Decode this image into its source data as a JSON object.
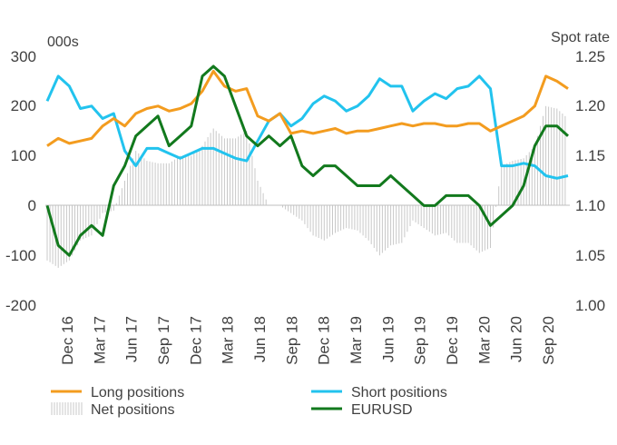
{
  "chart_data": {
    "type": "line",
    "left_axis_unit": "000s",
    "right_axis_unit": "Spot rate",
    "y_left": {
      "range": [
        -200,
        300
      ],
      "ticks": [
        "300",
        "200",
        "100",
        "0",
        "-100",
        "-200"
      ]
    },
    "y_right": {
      "range": [
        1.0,
        1.25
      ],
      "ticks": [
        "1.25",
        "1.20",
        "1.15",
        "1.10",
        "1.05",
        "1.00"
      ]
    },
    "x_tick_labels": [
      "Dec 16",
      "Mar 17",
      "Jun 17",
      "Sep 17",
      "Dec 17",
      "Mar 18",
      "Jun 18",
      "Sep 18",
      "Dec 18",
      "Mar 19",
      "Jun 19",
      "Sep 19",
      "Dec 19",
      "Mar 20",
      "Jun 20",
      "Sep 20"
    ],
    "legend": [
      {
        "label": "Long positions",
        "color": "#f39c1f",
        "style": "line"
      },
      {
        "label": "Short positions",
        "color": "#22c3ee",
        "style": "line"
      },
      {
        "label": "Net positions",
        "color": "#c8c8c8",
        "style": "bars"
      },
      {
        "label": "EURUSD",
        "color": "#12791d",
        "style": "line"
      }
    ],
    "x": [
      "Nov 16",
      "Dec 16",
      "Jan 17",
      "Feb 17",
      "Mar 17",
      "Apr 17",
      "May 17",
      "Jun 17",
      "Jul 17",
      "Aug 17",
      "Sep 17",
      "Oct 17",
      "Nov 17",
      "Dec 17",
      "Jan 18",
      "Feb 18",
      "Mar 18",
      "Apr 18",
      "May 18",
      "Jun 18",
      "Jul 18",
      "Aug 18",
      "Sep 18",
      "Oct 18",
      "Nov 18",
      "Dec 18",
      "Jan 19",
      "Feb 19",
      "Mar 19",
      "Apr 19",
      "May 19",
      "Jun 19",
      "Jul 19",
      "Aug 19",
      "Sep 19",
      "Oct 19",
      "Nov 19",
      "Dec 19",
      "Jan 20",
      "Feb 20",
      "Mar 20",
      "Apr 20",
      "May 20",
      "Jun 20",
      "Jul 20",
      "Aug 20",
      "Sep 20",
      "Oct 20"
    ],
    "series": [
      {
        "name": "Long positions",
        "axis": "left",
        "values": [
          120,
          135,
          125,
          130,
          135,
          160,
          175,
          160,
          185,
          195,
          200,
          190,
          195,
          205,
          230,
          270,
          240,
          230,
          235,
          180,
          170,
          185,
          145,
          150,
          145,
          150,
          155,
          145,
          150,
          150,
          155,
          160,
          165,
          160,
          165,
          165,
          160,
          160,
          165,
          165,
          150,
          160,
          170,
          180,
          200,
          260,
          250,
          235
        ]
      },
      {
        "name": "Short positions",
        "axis": "right_unused",
        "axis_left": true,
        "values": [
          210,
          260,
          240,
          195,
          200,
          175,
          185,
          110,
          80,
          115,
          115,
          105,
          95,
          105,
          115,
          115,
          105,
          95,
          90,
          130,
          170,
          185,
          160,
          175,
          205,
          220,
          210,
          190,
          200,
          220,
          255,
          240,
          240,
          190,
          210,
          225,
          215,
          235,
          240,
          260,
          235,
          80,
          80,
          85,
          80,
          60,
          55,
          60
        ]
      },
      {
        "name": "Net positions",
        "axis": "left",
        "values": [
          -110,
          -125,
          -110,
          -70,
          -60,
          -15,
          -10,
          50,
          110,
          90,
          85,
          85,
          100,
          100,
          120,
          155,
          135,
          135,
          150,
          50,
          0,
          0,
          -15,
          -30,
          -60,
          -70,
          -55,
          -45,
          -50,
          -70,
          -100,
          -80,
          -75,
          -30,
          -45,
          -60,
          -55,
          -75,
          -75,
          -95,
          -85,
          80,
          90,
          95,
          120,
          200,
          195,
          175
        ]
      },
      {
        "name": "EURUSD",
        "axis": "right",
        "values": [
          1.1,
          1.06,
          1.05,
          1.07,
          1.08,
          1.07,
          1.12,
          1.14,
          1.17,
          1.18,
          1.19,
          1.16,
          1.17,
          1.18,
          1.23,
          1.24,
          1.23,
          1.2,
          1.17,
          1.16,
          1.17,
          1.16,
          1.17,
          1.14,
          1.13,
          1.14,
          1.14,
          1.13,
          1.12,
          1.12,
          1.12,
          1.13,
          1.12,
          1.11,
          1.1,
          1.1,
          1.11,
          1.11,
          1.11,
          1.1,
          1.08,
          1.09,
          1.1,
          1.12,
          1.16,
          1.18,
          1.18,
          1.17
        ]
      }
    ]
  }
}
